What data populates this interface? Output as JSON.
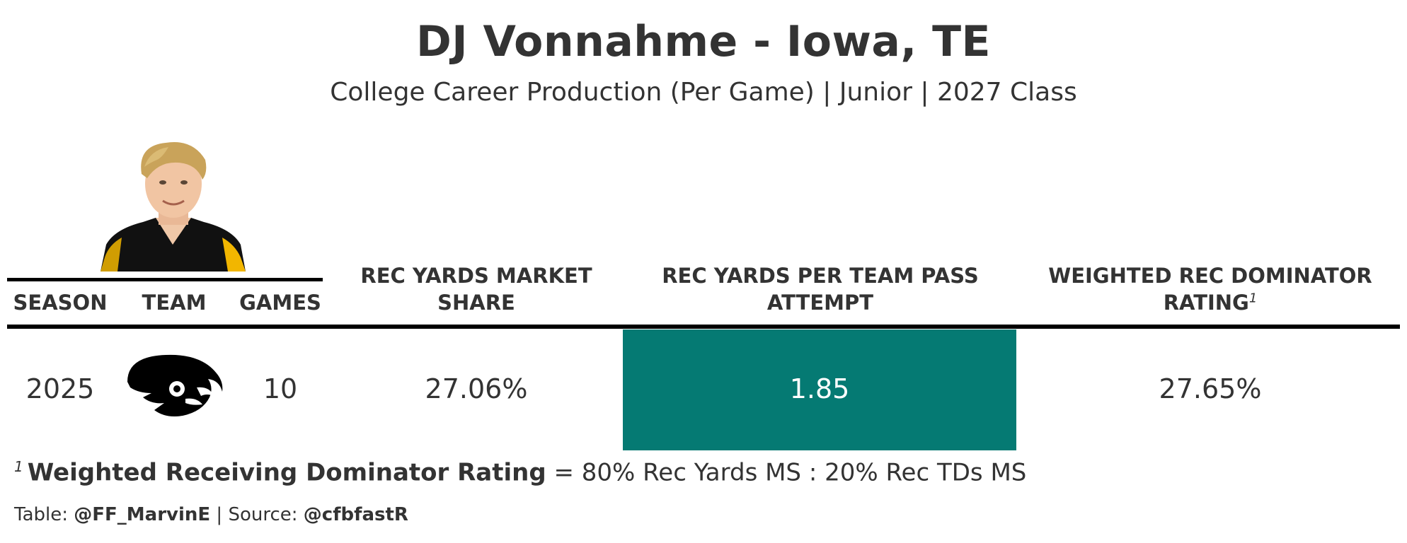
{
  "title": "DJ Vonnahme - Iowa, TE",
  "subtitle": "College Career Production (Per Game) | Junior | 2027 Class",
  "columns": {
    "season": "SEASON",
    "team": "TEAM",
    "games": "GAMES",
    "rec_yards_ms_line1": "REC YARDS MARKET",
    "rec_yards_ms_line2": "SHARE",
    "rec_yards_ppa_line1": "REC YARDS PER TEAM PASS",
    "rec_yards_ppa_line2": "ATTEMPT",
    "wdr_line1": "WEIGHTED REC DOMINATOR",
    "wdr_line2": "RATING",
    "wdr_footnote_mark": "1"
  },
  "rows": [
    {
      "season": "2025",
      "team_logo": "iowa-hawkeyes-logo",
      "games": "10",
      "rec_yards_ms": "27.06%",
      "rec_yards_ppa": "1.85",
      "wdr": "27.65%"
    }
  ],
  "highlight_color": "#057A73",
  "footnote": {
    "mark": "1",
    "term": "Weighted Receiving Dominator Rating",
    "definition": "= 80% Rec Yards MS : 20% Rec TDs MS"
  },
  "source": {
    "table_label": "Table: ",
    "table_author": "@FF_MarvinE",
    "separator": " | ",
    "source_label": "Source: ",
    "source_name": "@cfbfastR"
  }
}
